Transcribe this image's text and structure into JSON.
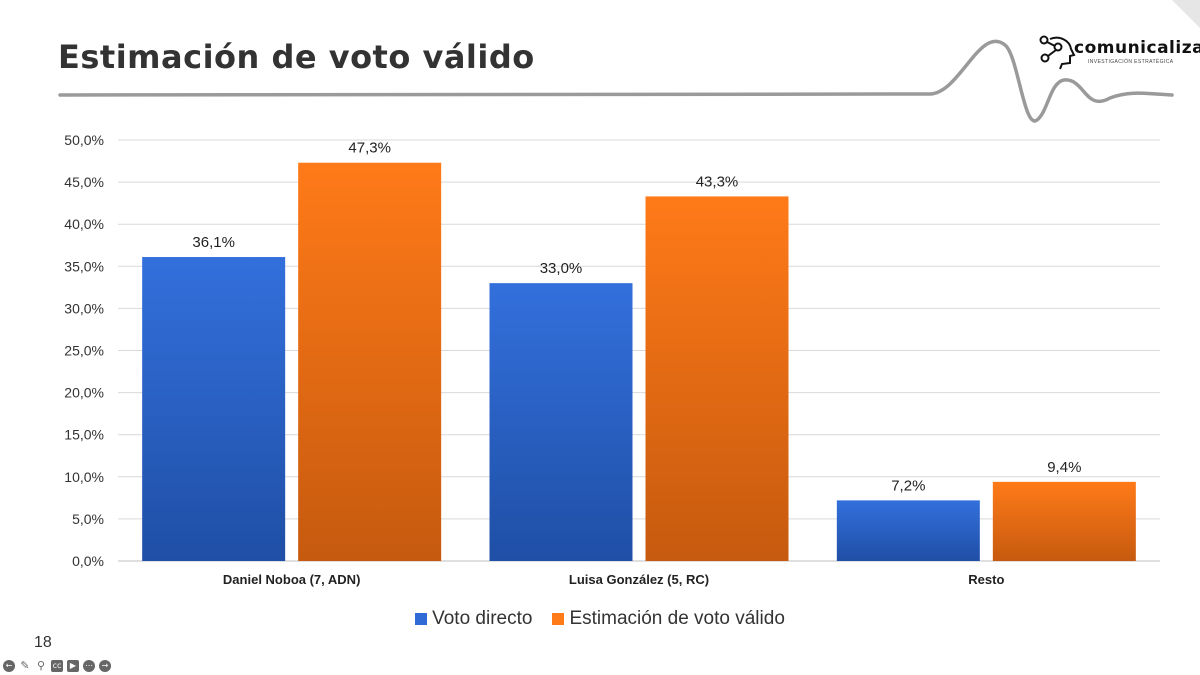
{
  "slide": {
    "title": "Estimación de voto válido",
    "page_number": "18"
  },
  "logo": {
    "word": "comunicaliza",
    "subtitle": "INVESTIGACIÓN ESTRATÉGICA"
  },
  "colors": {
    "series_1": "#2f6ad6",
    "series_1_dark": "#1f4fa6",
    "series_2": "#ff7a18",
    "series_2_dark": "#c65a0f",
    "grid": "#d9d9d9"
  },
  "chart_data": {
    "type": "bar",
    "categories": [
      "Daniel Noboa (7, ADN)",
      "Luisa González (5, RC)",
      "Resto"
    ],
    "series": [
      {
        "name": "Voto directo",
        "values": [
          36.1,
          33.0,
          7.2
        ],
        "labels": [
          "36,1%",
          "33,0%",
          "7,2%"
        ]
      },
      {
        "name": "Estimación de voto válido",
        "values": [
          47.3,
          43.3,
          9.4
        ],
        "labels": [
          "47,3%",
          "43,3%",
          "9,4%"
        ]
      }
    ],
    "ylim": [
      0,
      50
    ],
    "yticks": [
      "0,0%",
      "5,0%",
      "10,0%",
      "15,0%",
      "20,0%",
      "25,0%",
      "30,0%",
      "35,0%",
      "40,0%",
      "45,0%",
      "50,0%"
    ],
    "grid": true,
    "legend": "bottom"
  },
  "icons": [
    "back-icon",
    "pen-icon",
    "zoom-icon",
    "captions-icon",
    "video-off-icon",
    "more-icon",
    "forward-icon"
  ]
}
